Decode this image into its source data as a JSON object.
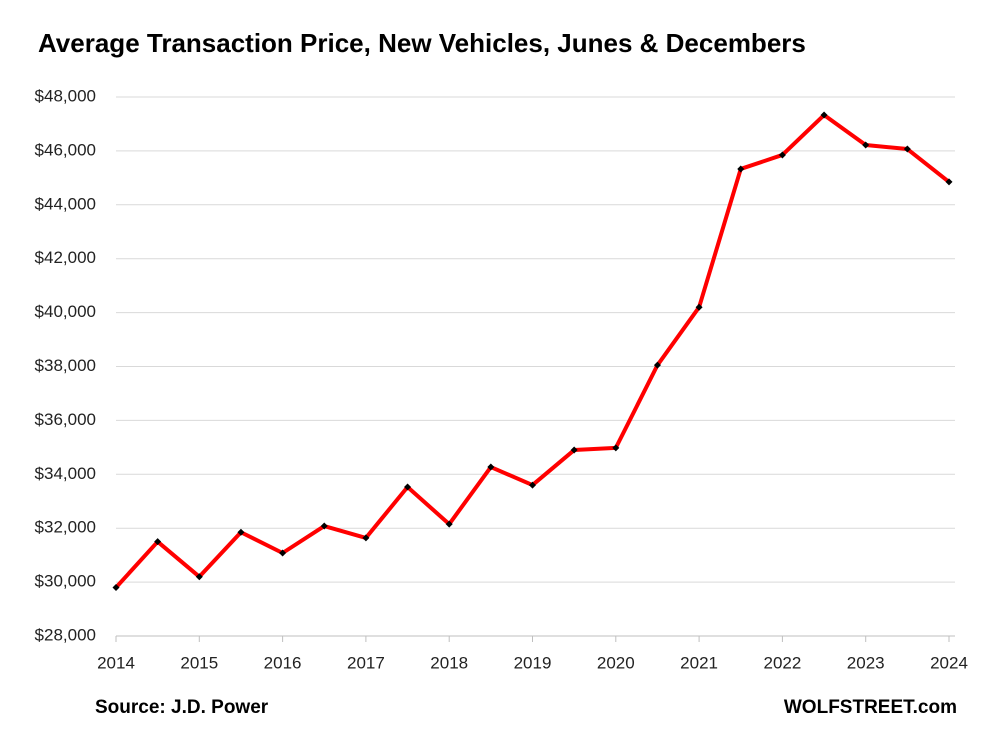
{
  "chart_data": {
    "type": "line",
    "title": "Average Transaction Price,  New Vehicles, Junes & Decembers",
    "source": "Source: J.D. Power",
    "credit": "WOLFSTREET.com",
    "x": [
      2014,
      2014.5,
      2015,
      2015.5,
      2016,
      2016.5,
      2017,
      2017.5,
      2018,
      2018.5,
      2019,
      2019.5,
      2020,
      2020.5,
      2021,
      2021.5,
      2022,
      2022.5,
      2023,
      2023.5,
      2024
    ],
    "values": [
      29800,
      31500,
      30200,
      31850,
      31080,
      32080,
      31640,
      33530,
      32150,
      34270,
      33600,
      34900,
      34980,
      38050,
      40200,
      45330,
      45850,
      47330,
      46220,
      46070,
      44850
    ],
    "color": "#ff0000",
    "marker_color": "#000000",
    "xlim": [
      2014,
      2024
    ],
    "xticks": [
      2014,
      2015,
      2016,
      2017,
      2018,
      2019,
      2020,
      2021,
      2022,
      2023,
      2024
    ],
    "ylim": [
      28000,
      48000
    ],
    "yticks": [
      {
        "value": 28000,
        "label": "$28,000"
      },
      {
        "value": 30000,
        "label": "$30,000"
      },
      {
        "value": 32000,
        "label": "$32,000"
      },
      {
        "value": 34000,
        "label": "$34,000"
      },
      {
        "value": 36000,
        "label": "$36,000"
      },
      {
        "value": 38000,
        "label": "$38,000"
      },
      {
        "value": 40000,
        "label": "$40,000"
      },
      {
        "value": 42000,
        "label": "$42,000"
      },
      {
        "value": 44000,
        "label": "$44,000"
      },
      {
        "value": 46000,
        "label": "$46,000"
      },
      {
        "value": 48000,
        "label": "$48,000"
      }
    ],
    "grid": true
  }
}
